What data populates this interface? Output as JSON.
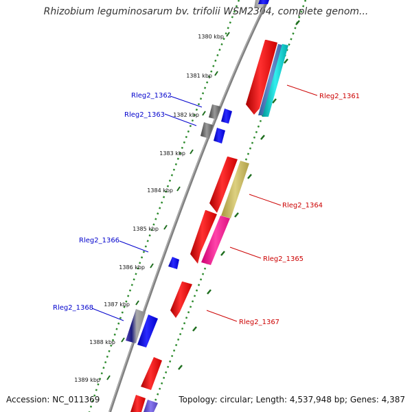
{
  "title": "Rhizobium leguminosarum bv. trifolii WSM2304, complete genom...",
  "footer": {
    "accession": "Accession: NC_011369",
    "summary": "Topology: circular; Length: 4,537,948 bp; Genes: 4,387"
  },
  "ticks": [
    "1380 kbp",
    "1381 kbp",
    "1382 kbp",
    "1383 kbp",
    "1384 kbp",
    "1385 kbp",
    "1386 kbp",
    "1387 kbp",
    "1388 kbp",
    "1389 kbp"
  ],
  "gene_labels": {
    "top": [
      "Rleg2_1362",
      "Rleg2_1363",
      "Rleg2_1366",
      "Rleg2_1368"
    ],
    "bottom": [
      "Rleg2_1361",
      "Rleg2_1364",
      "Rleg2_1365",
      "Rleg2_1367"
    ]
  },
  "colors": {
    "backbone": "#8a8a8a",
    "tick_track": "#2e8b2e",
    "strand_minus_label": "#0000cc",
    "strand_plus_label": "#cc0000",
    "red_gene": "#ff0000",
    "blue_gene": "#0000ff",
    "grey_gene": "#666666",
    "steelblue_gene": "#4a74b8",
    "cyan_gene": "#00cccc",
    "khaki_gene": "#c8b860",
    "pink_gene": "#ff2090",
    "slateblue_gene": "#6655cc",
    "navy_gene": "#1a1a80"
  }
}
